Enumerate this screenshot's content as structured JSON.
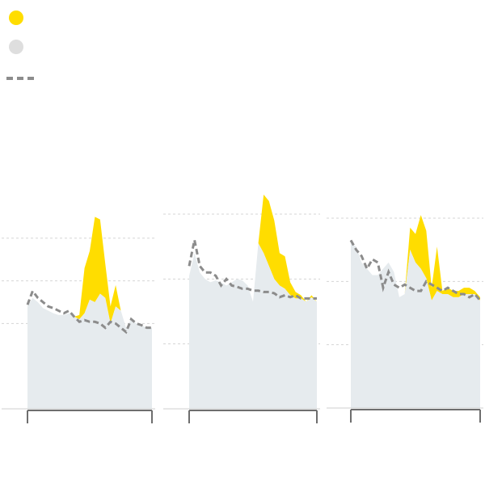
{
  "colors": {
    "excess": "#ffdd00",
    "baseline_fill": "#e6ebee",
    "expected_line": "#8c8c8c",
    "gridline": "#d5d5d5",
    "axis": "#6e6e6e"
  },
  "legend": [
    {
      "symbol": "yellow-dot",
      "label": ""
    },
    {
      "symbol": "gray-dot",
      "label": ""
    },
    {
      "symbol": "dashed-line",
      "label": ""
    }
  ],
  "chart_data": [
    {
      "type": "area",
      "ylim": [
        0,
        2.5
      ],
      "gridlines": [
        1,
        1.5,
        2
      ],
      "series": [
        {
          "role": "actual",
          "values": [
            1.2,
            1.3,
            1.25,
            1.18,
            1.15,
            1.12,
            1.1,
            1.1,
            1.12,
            1.08,
            1.1,
            1.65,
            1.85,
            2.25,
            2.22,
            1.7,
            1.2,
            1.45,
            1.15,
            0.95,
            1.05,
            1.0,
            0.98,
            0.95,
            0.95
          ]
        },
        {
          "role": "baseline",
          "values": [
            1.2,
            1.3,
            1.25,
            1.18,
            1.15,
            1.12,
            1.1,
            1.1,
            1.12,
            1.08,
            1.05,
            1.12,
            1.28,
            1.25,
            1.35,
            1.3,
            1.0,
            1.2,
            1.15,
            0.95,
            1.05,
            1.0,
            0.98,
            0.95,
            0.95
          ]
        },
        {
          "role": "expected",
          "values": [
            1.22,
            1.38,
            1.3,
            1.25,
            1.2,
            1.18,
            1.15,
            1.12,
            1.15,
            1.08,
            1.02,
            1.04,
            1.02,
            1.02,
            1.0,
            0.95,
            1.02,
            1.0,
            0.95,
            0.9,
            1.05,
            1.0,
            0.98,
            0.95,
            0.95
          ]
        }
      ]
    },
    {
      "type": "area",
      "ylim": [
        0,
        3.0
      ],
      "gridlines": [
        1,
        2,
        3
      ],
      "series": [
        {
          "role": "actual",
          "values": [
            2.05,
            2.4,
            2.1,
            2.0,
            1.95,
            1.98,
            1.95,
            1.9,
            1.95,
            2.0,
            1.98,
            1.9,
            1.65,
            2.55,
            3.3,
            3.2,
            2.9,
            2.4,
            2.35,
            1.95,
            1.8,
            1.75,
            1.65,
            1.75,
            1.65
          ]
        },
        {
          "role": "baseline",
          "values": [
            2.05,
            2.4,
            2.1,
            2.0,
            1.95,
            1.98,
            1.95,
            1.9,
            1.95,
            2.0,
            1.98,
            1.9,
            1.65,
            2.55,
            2.4,
            2.2,
            2.0,
            1.9,
            1.85,
            1.75,
            1.7,
            1.7,
            1.65,
            1.72,
            1.65
          ]
        },
        {
          "role": "expected",
          "values": [
            2.2,
            2.6,
            2.2,
            2.1,
            2.1,
            2.05,
            1.9,
            2.0,
            1.9,
            1.88,
            1.85,
            1.85,
            1.82,
            1.82,
            1.8,
            1.8,
            1.78,
            1.72,
            1.75,
            1.72,
            1.75,
            1.7,
            1.7,
            1.7,
            1.7
          ]
        }
      ]
    },
    {
      "type": "area",
      "ylim": [
        0,
        3.0
      ],
      "gridlines": [
        1,
        2,
        3
      ],
      "series": [
        {
          "role": "actual",
          "values": [
            2.6,
            2.55,
            2.3,
            2.2,
            2.1,
            2.1,
            2.2,
            2.3,
            2.15,
            1.75,
            1.8,
            2.85,
            2.75,
            3.05,
            2.8,
            1.9,
            2.55,
            1.85,
            1.9,
            1.85,
            1.85,
            1.9,
            1.9,
            1.85,
            1.75
          ]
        },
        {
          "role": "baseline",
          "values": [
            2.6,
            2.55,
            2.3,
            2.2,
            2.1,
            2.1,
            2.2,
            2.3,
            2.15,
            1.75,
            1.8,
            2.5,
            2.3,
            2.2,
            2.05,
            1.7,
            1.85,
            1.8,
            1.8,
            1.75,
            1.75,
            1.8,
            1.8,
            1.8,
            1.7
          ]
        },
        {
          "role": "expected",
          "values": [
            2.65,
            2.5,
            2.4,
            2.2,
            2.35,
            2.3,
            1.9,
            2.15,
            1.95,
            1.9,
            1.95,
            1.9,
            1.85,
            1.85,
            2.0,
            1.95,
            1.9,
            1.85,
            1.9,
            1.85,
            1.8,
            1.8,
            1.75,
            1.8,
            1.7
          ]
        }
      ]
    }
  ]
}
